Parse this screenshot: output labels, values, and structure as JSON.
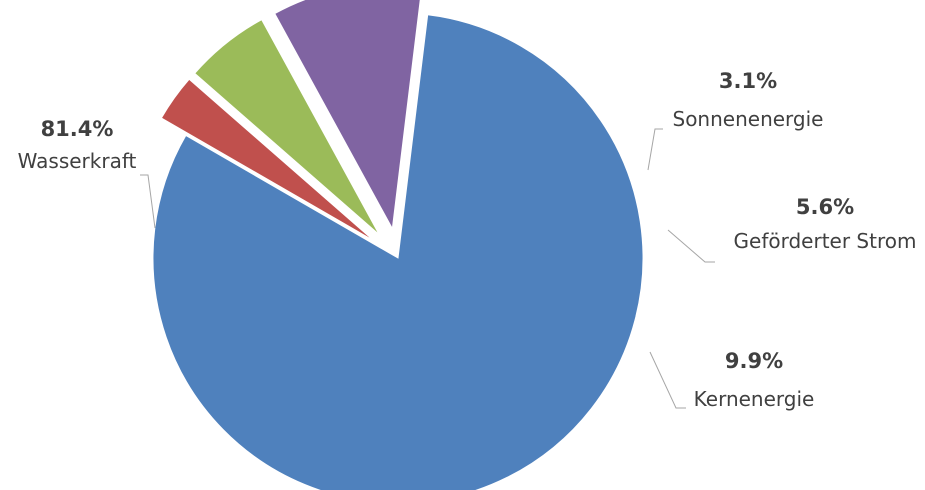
{
  "chart_data": {
    "type": "pie",
    "title": "",
    "slices": [
      {
        "name": "Wasserkraft",
        "value": 81.4,
        "label": "81.4%",
        "color": "#4f81bd"
      },
      {
        "name": "Sonnenenergie",
        "value": 3.1,
        "label": "3.1%",
        "color": "#c0504d"
      },
      {
        "name": "Geförderter Strom",
        "value": 5.6,
        "label": "5.6%",
        "color": "#9bbb59"
      },
      {
        "name": "Kernenergie",
        "value": 9.9,
        "label": "9.9%",
        "color": "#8064a2"
      }
    ],
    "exploded": [
      "Sonnenenergie",
      "Geförderter Strom",
      "Kernenergie"
    ],
    "legend": "none"
  }
}
